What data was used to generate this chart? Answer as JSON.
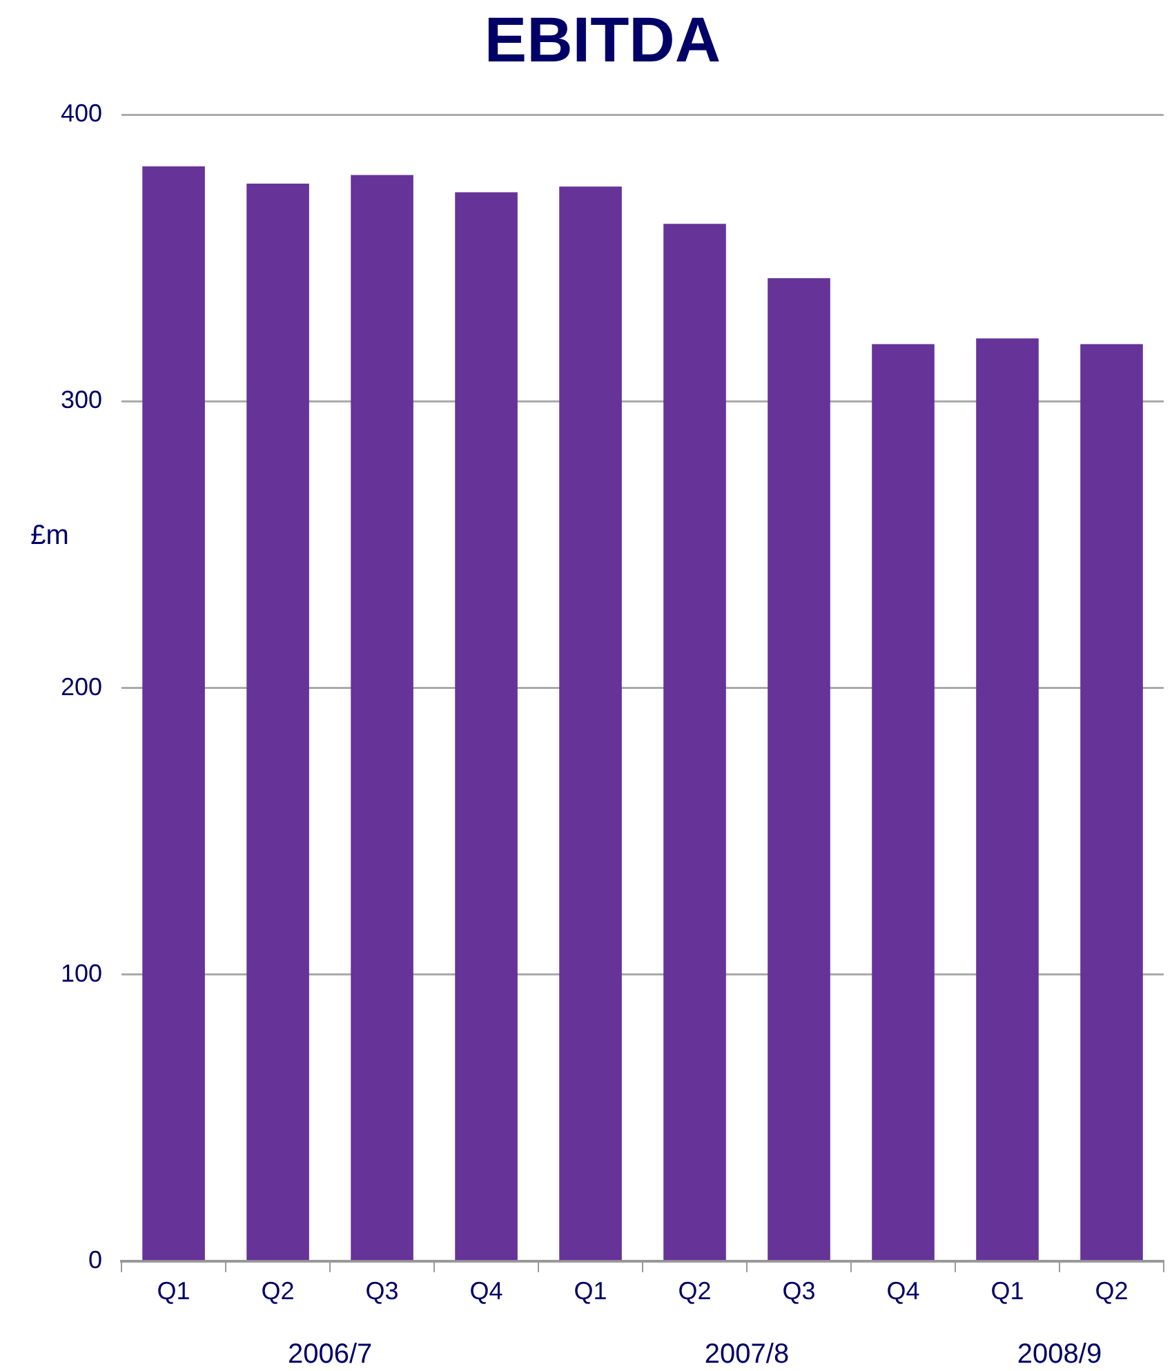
{
  "chart_data": {
    "type": "bar",
    "title": "EBITDA",
    "ylabel": "£m",
    "categories": [
      "Q1",
      "Q2",
      "Q3",
      "Q4",
      "Q1",
      "Q2",
      "Q3",
      "Q4",
      "Q1",
      "Q2"
    ],
    "values": [
      382,
      376,
      379,
      373,
      375,
      362,
      343,
      320,
      322,
      320
    ],
    "color": "#663399",
    "ylim": [
      0,
      400
    ],
    "yticks": [
      0,
      100,
      200,
      300,
      400
    ],
    "grid": "y",
    "legend": false,
    "annotations": [
      "2006/7",
      "2007/8",
      "2008/9"
    ]
  }
}
